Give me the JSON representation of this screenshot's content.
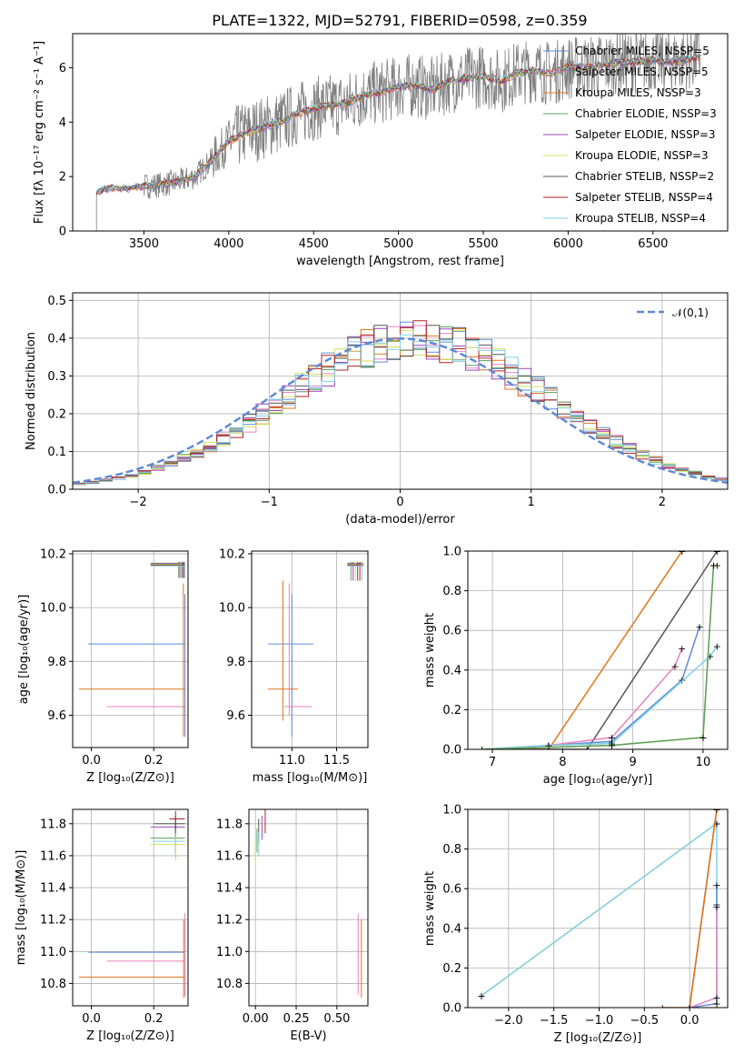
{
  "chart_data": [
    {
      "id": "spectrum",
      "type": "line",
      "title": "PLATE=1322, MJD=52791, FIBERID=0598, z=0.359",
      "xlabel": "wavelength [Angstrom, rest frame]",
      "ylabel": "Flux [f$_\\lambda$ 10$^{-17}$ erg cm$^{-2}$ s$^{-1}$ A$^{-1}$]",
      "xlim": [
        3080,
        6940
      ],
      "ylim": [
        0,
        7.25
      ],
      "xticks": [
        3500,
        4000,
        4500,
        5000,
        5500,
        6000,
        6500
      ],
      "yticks": [
        0,
        2,
        4,
        6
      ],
      "grid": false,
      "legend_position": "top-right",
      "data_envelope": {
        "x": [
          3220,
          3300,
          3400,
          3500,
          3600,
          3700,
          3800,
          3900,
          4000,
          4100,
          4200,
          4300,
          4400,
          4500,
          4600,
          4700,
          4800,
          4900,
          5000,
          5100,
          5200,
          5300,
          5400,
          5500,
          5600,
          5700,
          5800,
          5900,
          6000,
          6100,
          6200,
          6300,
          6400,
          6500,
          6600,
          6700,
          6780
        ],
        "y": [
          1.4,
          1.6,
          1.55,
          1.65,
          1.7,
          1.8,
          2.0,
          2.6,
          3.3,
          3.6,
          3.8,
          4.0,
          4.3,
          4.5,
          4.6,
          4.7,
          5.0,
          5.1,
          5.3,
          5.35,
          5.2,
          5.5,
          5.6,
          5.7,
          5.5,
          5.8,
          5.9,
          5.8,
          6.0,
          6.0,
          6.1,
          6.2,
          6.2,
          6.3,
          6.2,
          6.3,
          6.4
        ]
      },
      "legend": [
        "Chabrier MILES, N$_{SSP}$=5",
        "Salpeter MILES, N$_{SSP}$=5",
        "Kroupa MILES, N$_{SSP}$=3",
        "Chabrier ELODIE, N$_{SSP}$=3",
        "Salpeter ELODIE, N$_{SSP}$=3",
        "Kroupa ELODIE, N$_{SSP}$=3",
        "Chabrier STELIB, N$_{SSP}$=2",
        "Salpeter STELIB, N$_{SSP}$=4",
        "Kroupa STELIB, N$_{SSP}$=4"
      ],
      "legend_colors": [
        "#5e8ad6",
        "#e782be",
        "#e0761c",
        "#5c9e5c",
        "#9a44b8",
        "#cfe05a",
        "#555555",
        "#b22222",
        "#7fd0e8"
      ]
    },
    {
      "id": "residuals",
      "type": "line",
      "xlabel": "(data-model)/error",
      "ylabel": "Normed distribution",
      "xlim": [
        -2.5,
        2.5
      ],
      "ylim": [
        0,
        0.52
      ],
      "xticks": [
        -2,
        -1,
        0,
        1,
        2
      ],
      "yticks": [
        0.0,
        0.1,
        0.2,
        0.3,
        0.4,
        0.5
      ],
      "grid": true,
      "legend": [
        "$\\mathcal{N}(0,1)$"
      ],
      "legend_position": "top-right",
      "reference_curve": "normal(0,1) pdf"
    },
    {
      "id": "age_vs_Z",
      "type": "scatter",
      "xlabel": "Z [log$_{10}$($Z/Z_\\odot$)]",
      "ylabel": "age  [log$_{10}$($age/yr$)]",
      "xlim": [
        -0.06,
        0.31
      ],
      "ylim": [
        9.48,
        10.21
      ],
      "xticks": [
        0.0,
        0.2
      ],
      "yticks": [
        9.6,
        9.8,
        10.0,
        10.2
      ],
      "grid": true
    },
    {
      "id": "age_vs_mass",
      "type": "scatter",
      "xlabel": "mass [log$_{10}$($M/M_\\odot$)]",
      "xlim": [
        10.55,
        11.85
      ],
      "ylim": [
        9.48,
        10.21
      ],
      "xticks": [
        11.0,
        11.5
      ],
      "yticks": [
        9.6,
        9.8,
        10.0,
        10.2
      ],
      "grid": true
    },
    {
      "id": "massweight_vs_age",
      "type": "line",
      "xlabel": "age  [log$_{10}$($age/yr$)]",
      "ylabel": "mass weight",
      "xlim": [
        6.65,
        10.35
      ],
      "ylim": [
        0,
        1
      ],
      "xticks": [
        7,
        8,
        9,
        10
      ],
      "yticks": [
        0.0,
        0.2,
        0.4,
        0.6,
        0.8,
        1.0
      ],
      "grid": true
    },
    {
      "id": "mass_vs_Z",
      "type": "scatter",
      "xlabel": "Z [log$_{10}$($Z/Z_\\odot$)]",
      "ylabel": "mass [log$_{10}$($M/M_\\odot$)]",
      "xlim": [
        -0.06,
        0.31
      ],
      "ylim": [
        10.66,
        11.89
      ],
      "xticks": [
        0.0,
        0.2
      ],
      "yticks": [
        10.8,
        11.0,
        11.2,
        11.4,
        11.6,
        11.8
      ],
      "grid": true
    },
    {
      "id": "mass_vs_ebv",
      "type": "scatter",
      "xlabel": "E(B-V)",
      "xlim": [
        -0.04,
        0.69
      ],
      "ylim": [
        10.66,
        11.89
      ],
      "xticks": [
        0.0,
        0.25,
        0.5
      ],
      "yticks": [
        10.8,
        11.0,
        11.2,
        11.4,
        11.6,
        11.8
      ],
      "grid": true
    },
    {
      "id": "massweight_vs_Z",
      "type": "line",
      "xlabel": "Z [log$_{10}$($Z/Z_\\odot$)]",
      "ylabel": "mass weight",
      "xlim": [
        -2.45,
        0.42
      ],
      "ylim": [
        0,
        1
      ],
      "xticks": [
        -2.0,
        -1.5,
        -1.0,
        -0.5,
        0.0
      ],
      "yticks": [
        0.0,
        0.2,
        0.4,
        0.6,
        0.8,
        1.0
      ],
      "grid": true
    }
  ]
}
